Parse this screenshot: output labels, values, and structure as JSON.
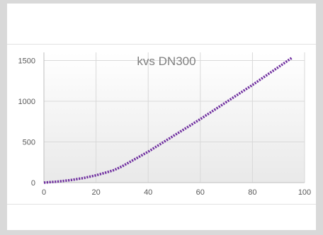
{
  "chart_data": {
    "type": "line",
    "title": "kvs DN300",
    "xlabel": "",
    "ylabel": "",
    "xlim": [
      0,
      100
    ],
    "ylim": [
      0,
      1600
    ],
    "x_ticks": [
      0,
      20,
      40,
      60,
      80,
      100
    ],
    "y_ticks": [
      0,
      500,
      1000,
      1500
    ],
    "grid": true,
    "series": [
      {
        "color": "#7030a0",
        "style": "dotted",
        "x": [
          0,
          5,
          10,
          15,
          20,
          25,
          27,
          30,
          35,
          40,
          50,
          60,
          70,
          80,
          90,
          95
        ],
        "y": [
          0,
          12,
          30,
          55,
          90,
          135,
          155,
          200,
          290,
          380,
          580,
          780,
          990,
          1200,
          1420,
          1530
        ]
      }
    ]
  }
}
